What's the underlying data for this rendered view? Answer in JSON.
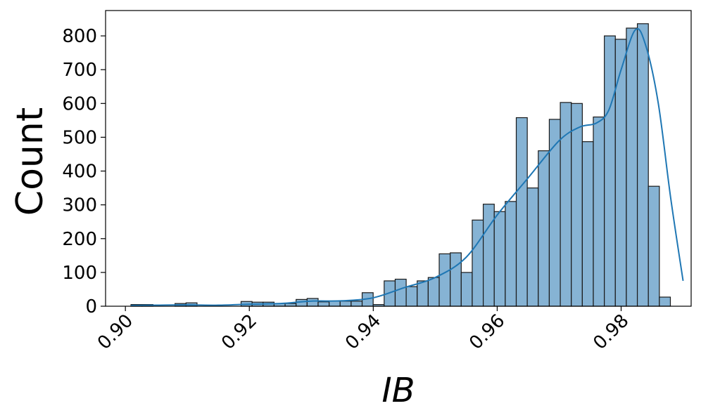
{
  "chart_data": {
    "type": "bar",
    "subtype": "histogram",
    "title": "",
    "xlabel": "IB",
    "ylabel": "Count",
    "xlim": [
      0.8968,
      0.9913
    ],
    "ylim": [
      0,
      875
    ],
    "x_ticks": [
      "0.90",
      "0.92",
      "0.94",
      "0.96",
      "0.98"
    ],
    "y_ticks": [
      "0",
      "100",
      "200",
      "300",
      "400",
      "500",
      "600",
      "700",
      "800"
    ],
    "bins": {
      "start": 0.9009,
      "width": 0.0017765,
      "counts": [
        5,
        5,
        0,
        0,
        8,
        10,
        0,
        0,
        0,
        0,
        14,
        12,
        12,
        8,
        8,
        20,
        23,
        13,
        15,
        15,
        15,
        40,
        5,
        75,
        80,
        58,
        75,
        85,
        155,
        158,
        100,
        255,
        302,
        280,
        310,
        558,
        350,
        460,
        553,
        603,
        600,
        487,
        560,
        800,
        790,
        823,
        836,
        355,
        27
      ]
    },
    "kde": {
      "x": [
        0.9009,
        0.905,
        0.91,
        0.915,
        0.92,
        0.925,
        0.93,
        0.935,
        0.94,
        0.945,
        0.95,
        0.955,
        0.96,
        0.965,
        0.97,
        0.9733,
        0.976,
        0.978,
        0.98,
        0.9823,
        0.984,
        0.986,
        0.988,
        0.99
      ],
      "y": [
        2,
        3,
        4,
        3,
        6,
        8,
        15,
        16,
        25,
        55,
        85,
        145,
        270,
        380,
        490,
        530,
        542,
        580,
        700,
        818,
        770,
        600,
        320,
        75
      ]
    },
    "colors": {
      "bar_fill": "#86b3d4",
      "bar_edge": "#1a1a1a",
      "kde_line": "#1f77b4"
    },
    "grid": false,
    "legend": "none"
  }
}
